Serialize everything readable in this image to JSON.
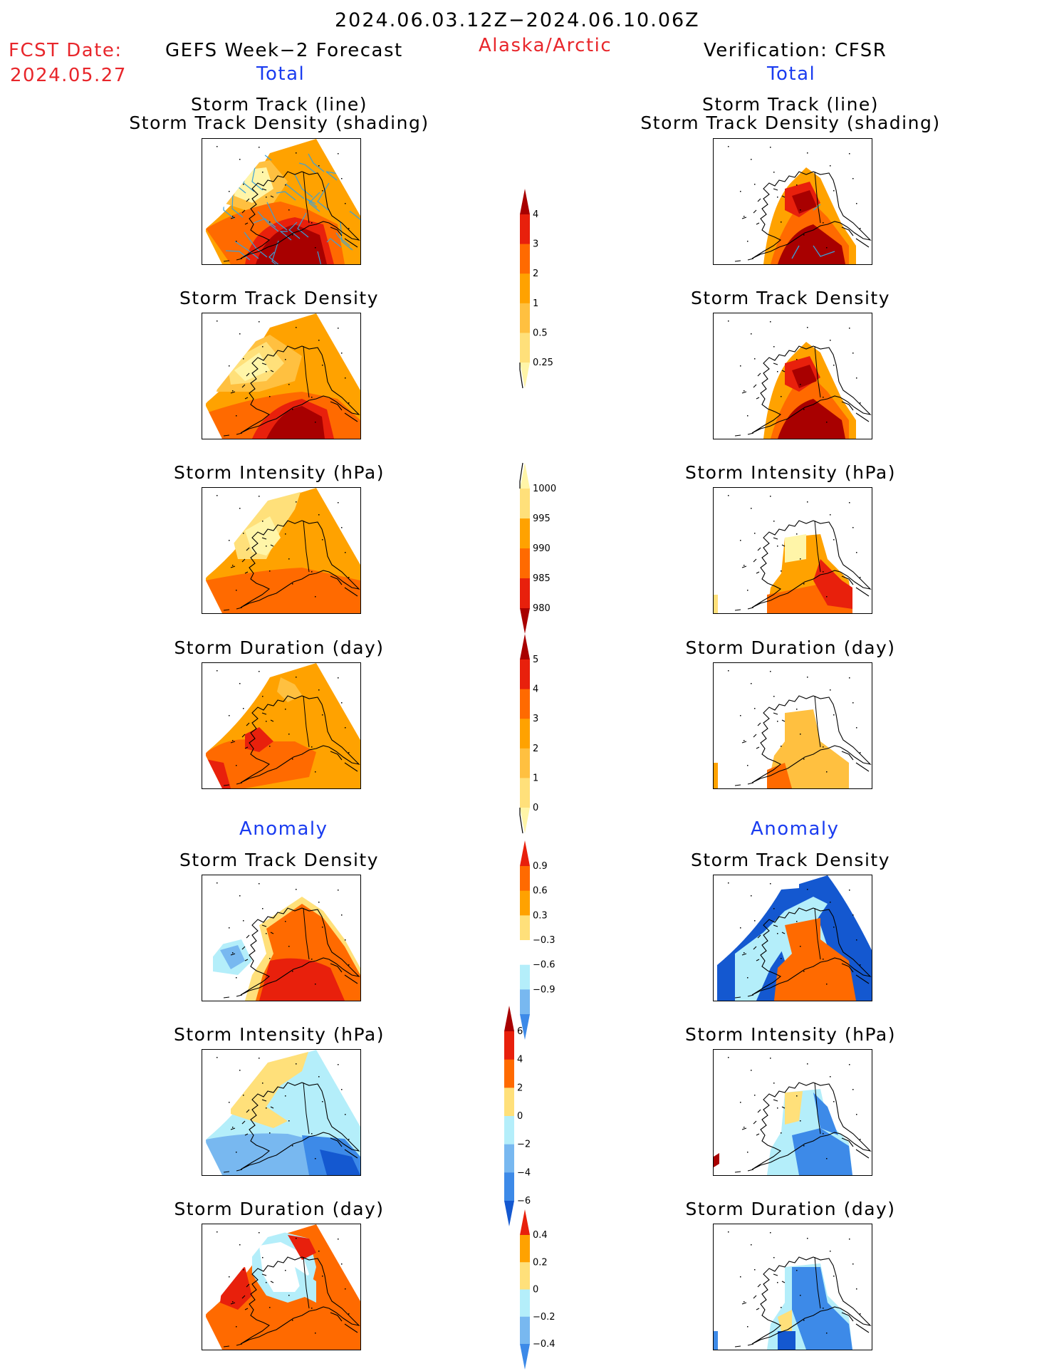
{
  "header": {
    "period": "2024.06.03.12Z−2024.06.10.06Z",
    "fcst_label": "FCST Date:",
    "fcst_date": "2024.05.27",
    "left_title": "GEFS Week−2 Forecast",
    "region": "Alaska/Arctic",
    "right_title": "Verification: CFSR",
    "total_left": "Total",
    "total_right": "Total",
    "anomaly_left": "Anomaly",
    "anomaly_right": "Anomaly"
  },
  "panels": {
    "track_line_1": "Storm Track (line)",
    "track_line_2": "Storm Track Density (shading)",
    "track_density": "Storm Track Density",
    "intensity": "Storm Intensity (hPa)",
    "duration": "Storm Duration (day)"
  },
  "colorbars": {
    "density_total": [
      "4",
      "3",
      "2",
      "1",
      "0.5",
      "0.25"
    ],
    "intensity_total": [
      "1000",
      "995",
      "990",
      "985",
      "980"
    ],
    "duration_total": [
      "5",
      "4",
      "3",
      "2",
      "1",
      "0"
    ],
    "density_anomaly": [
      "0.9",
      "0.6",
      "0.3",
      "−0.3",
      "−0.6",
      "−0.9"
    ],
    "intensity_anomaly": [
      "6",
      "4",
      "2",
      "0",
      "−2",
      "−4",
      "−6"
    ],
    "duration_anomaly": [
      "0.4",
      "0.2",
      "0",
      "−0.2",
      "−0.4"
    ]
  },
  "colors": {
    "pale_yellow": "#fff5a8",
    "light_yellow": "#ffe07a",
    "light_orange": "#ffc040",
    "orange": "#ffa200",
    "dark_orange": "#ff6a00",
    "red": "#e8200c",
    "dark_red": "#a80000",
    "light_blue": "#b4eefa",
    "mid_blue": "#78b8f0",
    "blue": "#3d8ae8",
    "dark_blue": "#1458d0",
    "track_line": "#3aa0d8"
  }
}
